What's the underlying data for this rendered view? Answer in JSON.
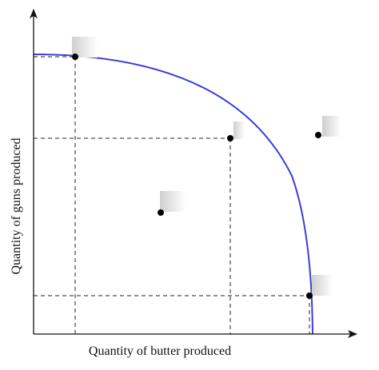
{
  "diagram": {
    "x_axis_label": "Quantity of butter produced",
    "y_axis_label": "Quantity of guns produced",
    "colors": {
      "frontier": "#3a3fdc",
      "axes": "#111111",
      "guides": "#222222",
      "points": "#000000",
      "label_box": "#dcdcdc"
    }
  }
}
